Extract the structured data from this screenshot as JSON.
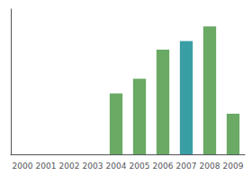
{
  "chart_data": {
    "type": "bar",
    "categories": [
      "2000",
      "2001",
      "2002",
      "2003",
      "2004",
      "2005",
      "2006",
      "2007",
      "2008",
      "2009"
    ],
    "values": [
      0,
      0,
      0,
      0,
      42,
      52,
      72,
      78,
      88,
      28
    ],
    "colors": [
      "#6aaa64",
      "#6aaa64",
      "#6aaa64",
      "#6aaa64",
      "#6aaa64",
      "#6aaa64",
      "#6aaa64",
      "#3a9ea5",
      "#6aaa64",
      "#6aaa64"
    ],
    "ylim": [
      0,
      100
    ],
    "yticks": [],
    "grid": false,
    "tick_labels": "x"
  }
}
